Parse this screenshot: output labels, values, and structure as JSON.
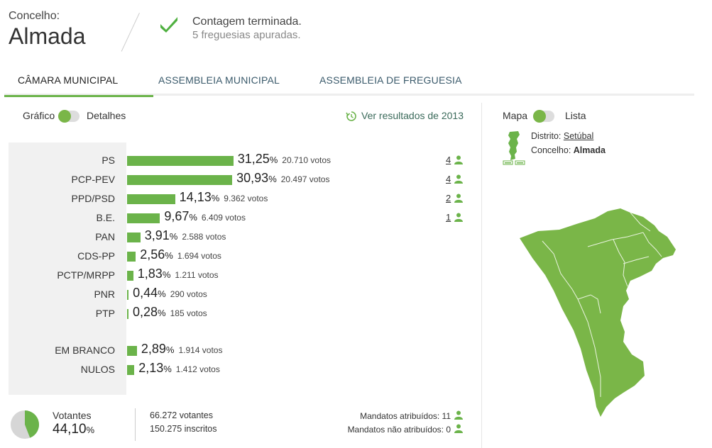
{
  "header": {
    "label": "Concelho:",
    "city": "Almada",
    "status_title": "Contagem terminada.",
    "status_sub": "5 freguesias apuradas."
  },
  "tabs": [
    "CÂMARA MUNICIPAL",
    "ASSEMBLEIA MUNICIPAL",
    "ASSEMBLEIA DE FREGUESIA"
  ],
  "view_toggle": {
    "left": "Gráfico",
    "right": "Detalhes"
  },
  "history_link": "Ver resultados de 2013",
  "map_toggle": {
    "left": "Mapa",
    "right": "Lista"
  },
  "results": [
    {
      "party": "PS",
      "pct": "31,25",
      "votes": "20.710 votos",
      "seats": "4",
      "value": 31.25
    },
    {
      "party": "PCP-PEV",
      "pct": "30,93",
      "votes": "20.497 votos",
      "seats": "4",
      "value": 30.93
    },
    {
      "party": "PPD/PSD",
      "pct": "14,13",
      "votes": "9.362 votos",
      "seats": "2",
      "value": 14.13
    },
    {
      "party": "B.E.",
      "pct": "9,67",
      "votes": "6.409 votos",
      "seats": "1",
      "value": 9.67
    },
    {
      "party": "PAN",
      "pct": "3,91",
      "votes": "2.588 votos",
      "seats": "",
      "value": 3.91
    },
    {
      "party": "CDS-PP",
      "pct": "2,56",
      "votes": "1.694 votos",
      "seats": "",
      "value": 2.56
    },
    {
      "party": "PCTP/MRPP",
      "pct": "1,83",
      "votes": "1.211 votos",
      "seats": "",
      "value": 1.83
    },
    {
      "party": "PNR",
      "pct": "0,44",
      "votes": "290 votos",
      "seats": "",
      "value": 0.44
    },
    {
      "party": "PTP",
      "pct": "0,28",
      "votes": "185 votos",
      "seats": "",
      "value": 0.28
    }
  ],
  "others": [
    {
      "party": "EM BRANCO",
      "pct": "2,89",
      "votes": "1.914 votos",
      "value": 2.89
    },
    {
      "party": "NULOS",
      "pct": "2,13",
      "votes": "1.412 votos",
      "value": 2.13
    }
  ],
  "pct_sign": "%",
  "turnout": {
    "label": "Votantes",
    "pct": "44,10",
    "value": 44.1,
    "voters": "66.272 votantes",
    "registered": "150.275 inscritos"
  },
  "mandates": {
    "assigned": "Mandatos atribuídos: 11",
    "unassigned": "Mandatos não atribuídos: 0"
  },
  "location": {
    "district_label": "Distrito:",
    "district": "Setúbal",
    "council_label": "Concelho:",
    "council": "Almada"
  },
  "colors": {
    "accent": "#6bb34a",
    "map": "#7ab648",
    "pie_grey": "#d6d6d6"
  }
}
